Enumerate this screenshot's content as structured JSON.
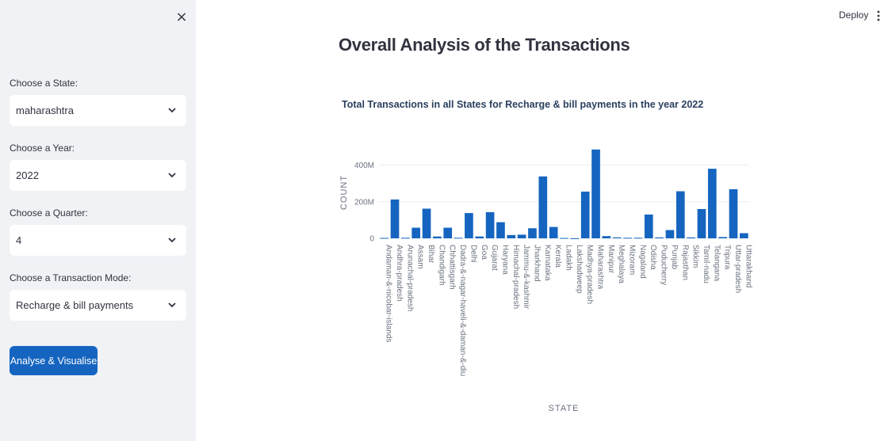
{
  "sidebar": {
    "close_label": "×",
    "controls": [
      {
        "label": "Choose a State:",
        "value": "maharashtra"
      },
      {
        "label": "Choose a Year:",
        "value": "2022"
      },
      {
        "label": "Choose a Quarter:",
        "value": "4"
      },
      {
        "label": "Choose a Transaction Mode:",
        "value": "Recharge & bill payments"
      }
    ],
    "button_label": "Analyse & Visualise"
  },
  "header": {
    "deploy_label": "Deploy",
    "menu_icon": "kebab-menu-icon"
  },
  "main": {
    "title": "Overall Analysis of the Transactions"
  },
  "colors": {
    "accent": "#1565c0",
    "bar": "#1565c0",
    "sidebar_bg": "#f0f2f6"
  },
  "chart_data": {
    "type": "bar",
    "title": "Total Transactions in all States for Recharge & bill payments in the year 2022",
    "xlabel": "STATE",
    "ylabel": "COUNT",
    "ylim": [
      0,
      480
    ],
    "yticks": [
      0,
      200,
      400
    ],
    "ytick_labels": [
      "0",
      "200M",
      "400M"
    ],
    "unit": "M",
    "categories": [
      "Andaman-&-nicobar-islands",
      "Andhra-pradesh",
      "Arunachal-pradesh",
      "Assam",
      "Bihar",
      "Chandigarh",
      "Chhattisgarh",
      "Dadra-&-nagar-haveli-&-daman-&-diu",
      "Delhi",
      "Goa",
      "Gujarat",
      "Haryana",
      "Himachal-pradesh",
      "Jammu-&-kashmir",
      "Jharkhand",
      "Karnataka",
      "Kerala",
      "Ladakh",
      "Lakshadweep",
      "Madhya-pradesh",
      "Maharashtra",
      "Manipur",
      "Meghalaya",
      "Mizoram",
      "Nagaland",
      "Odisha",
      "Puducherry",
      "Punjab",
      "Rajasthan",
      "Sikkim",
      "Tamil-nadu",
      "Telangana",
      "Tripura",
      "Uttar-pradesh",
      "Uttarakhand"
    ],
    "values": [
      2,
      212,
      3,
      58,
      162,
      10,
      58,
      3,
      138,
      10,
      143,
      88,
      18,
      20,
      55,
      338,
      62,
      2,
      0.2,
      255,
      485,
      12,
      5,
      3,
      3,
      130,
      5,
      45,
      257,
      5,
      160,
      380,
      7,
      268,
      28
    ]
  }
}
